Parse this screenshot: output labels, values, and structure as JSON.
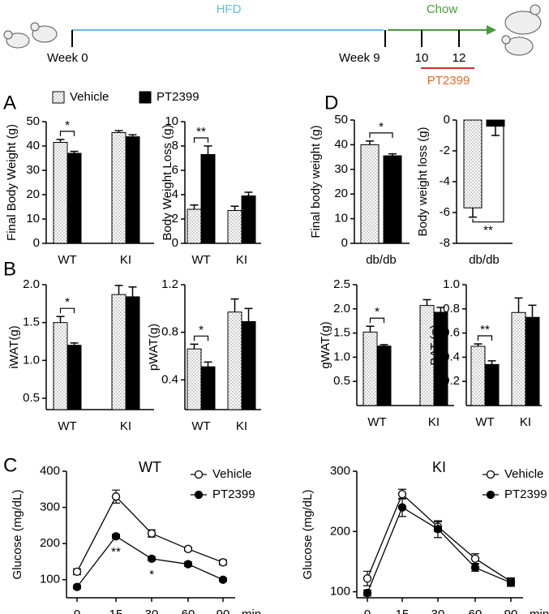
{
  "timeline": {
    "diet": [
      "HFD",
      "Chow"
    ],
    "weeks": [
      "Week 0",
      "Week 9",
      "10",
      "12"
    ],
    "treatment": "PT2399"
  },
  "panel_labels": [
    "A",
    "B",
    "C",
    "D"
  ],
  "chart_data": [
    {
      "type": "bar",
      "ylabel": "Final Body Weight (g)",
      "categories": [
        "WT",
        "KI"
      ],
      "legend": "top",
      "series": [
        {
          "name": "Vehicle",
          "color": "#ffffff",
          "pattern": "dots",
          "values": [
            41.5,
            45.5
          ],
          "errors": [
            1.2,
            0.8
          ]
        },
        {
          "name": "PT2399",
          "color": "#000000",
          "values": [
            37,
            43.8
          ],
          "errors": [
            0.8,
            0.8
          ]
        }
      ],
      "ylim": [
        0,
        50
      ],
      "yticks": [
        0,
        10,
        20,
        30,
        40,
        50
      ],
      "annotations": [
        "*"
      ]
    },
    {
      "type": "bar",
      "ylabel": "Body Weight Loss (g)",
      "categories": [
        "WT",
        "KI"
      ],
      "series": [
        {
          "color": "#ffffff",
          "pattern": "dots",
          "values": [
            2.8,
            2.7
          ],
          "errors": [
            0.35,
            0.35
          ]
        },
        {
          "color": "#000000",
          "values": [
            7.3,
            3.9
          ],
          "errors": [
            0.7,
            0.3
          ]
        }
      ],
      "ylim": [
        0,
        10
      ],
      "yticks": [
        0,
        2,
        4,
        6,
        8,
        10
      ],
      "annotations": [
        "**"
      ]
    },
    {
      "type": "bar",
      "ylabel": "Final body weight (g)",
      "categories": [
        "db/db"
      ],
      "series": [
        {
          "color": "#ffffff",
          "pattern": "dots",
          "values": [
            40
          ],
          "errors": [
            1.5
          ]
        },
        {
          "color": "#000000",
          "values": [
            35.5
          ],
          "errors": [
            0.8
          ]
        }
      ],
      "ylim": [
        0,
        50
      ],
      "yticks": [
        0,
        10,
        20,
        30,
        40,
        50
      ],
      "annotations": [
        "*"
      ]
    },
    {
      "type": "bar",
      "ylabel": "Body weight loss (g)",
      "categories": [
        "db/db"
      ],
      "series": [
        {
          "color": "#ffffff",
          "pattern": "dots",
          "values": [
            -5.7
          ],
          "errors": [
            0.6
          ]
        },
        {
          "color": "#000000",
          "values": [
            -0.4
          ],
          "errors": [
            0.6
          ]
        }
      ],
      "ylim": [
        -8,
        0
      ],
      "yticks": [
        -8,
        -6,
        -4,
        -2,
        0
      ],
      "annotations": [
        "**"
      ]
    },
    {
      "type": "bar",
      "ylabel": "iWAT(g)",
      "categories": [
        "WT",
        "KI"
      ],
      "series": [
        {
          "color": "#ffffff",
          "pattern": "dots",
          "values": [
            1.5,
            1.87
          ],
          "errors": [
            0.08,
            0.12
          ]
        },
        {
          "color": "#000000",
          "values": [
            1.2,
            1.84
          ],
          "errors": [
            0.03,
            0.13
          ]
        }
      ],
      "ylim": [
        0.35,
        2
      ],
      "yticks": [
        0.5,
        {
          "value": 1,
          "label": "1.0"
        },
        1.5,
        {
          "value": 2,
          "label": "2.0"
        }
      ],
      "annotations": [
        "*"
      ]
    },
    {
      "type": "bar",
      "ylabel": "pWAT(g)",
      "categories": [
        "WT",
        "KI"
      ],
      "series": [
        {
          "color": "#ffffff",
          "pattern": "dots",
          "values": [
            0.66,
            0.97
          ],
          "errors": [
            0.04,
            0.11
          ]
        },
        {
          "color": "#000000",
          "values": [
            0.51,
            0.89
          ],
          "errors": [
            0.04,
            0.11
          ]
        }
      ],
      "ylim": [
        0.15,
        1.2
      ],
      "yticks": [
        0.4,
        0.8,
        1.2
      ],
      "annotations": [
        "*"
      ]
    },
    {
      "type": "bar",
      "ylabel": "gWAT(g)",
      "categories": [
        "WT",
        "KI"
      ],
      "series": [
        {
          "color": "#ffffff",
          "pattern": "dots",
          "values": [
            1.52,
            2.07
          ],
          "errors": [
            0.12,
            0.12
          ]
        },
        {
          "color": "#000000",
          "values": [
            1.23,
            1.93
          ],
          "errors": [
            0.03,
            0.1
          ]
        }
      ],
      "ylim": [
        0,
        2.5
      ],
      "yticks": [
        0.5,
        {
          "value": 1,
          "label": "1.0"
        },
        1.5,
        {
          "value": 2,
          "label": "2.0"
        },
        2.5
      ],
      "annotations": [
        "*"
      ]
    },
    {
      "type": "bar",
      "ylabel": "BAT (g)",
      "categories": [
        "WT",
        "KI"
      ],
      "series": [
        {
          "color": "#ffffff",
          "pattern": "dots",
          "values": [
            0.49,
            0.77
          ],
          "errors": [
            0.02,
            0.12
          ]
        },
        {
          "color": "#000000",
          "values": [
            0.34,
            0.73
          ],
          "errors": [
            0.03,
            0.1
          ]
        }
      ],
      "ylim": [
        0,
        1
      ],
      "yticks": [
        0.2,
        0.4,
        0.6,
        0.8,
        {
          "value": 1,
          "label": "1.0"
        }
      ],
      "annotations": [
        "**"
      ]
    },
    {
      "type": "line",
      "title": "WT",
      "ylabel": "Glucose (mg/dL)",
      "categories": [
        "0",
        "15",
        "30",
        "60",
        "90"
      ],
      "xlabel": "min",
      "legend": "upper right",
      "series": [
        {
          "name": "Vehicle",
          "color": "#000000",
          "marker": "open",
          "values": [
            122,
            330,
            228,
            185,
            148
          ],
          "errors": [
            8,
            18,
            10,
            5,
            7
          ]
        },
        {
          "name": "PT2399",
          "color": "#000000",
          "marker": "filled",
          "values": [
            80,
            220,
            158,
            143,
            100
          ],
          "errors": [
            5,
            6,
            5,
            6,
            5
          ]
        }
      ],
      "ylim": [
        50,
        400
      ],
      "yticks": [
        100,
        200,
        300,
        400
      ],
      "annotations": [
        "**",
        "*"
      ]
    },
    {
      "type": "line",
      "title": "KI",
      "ylabel": "Glucose (mg/dL)",
      "categories": [
        "0",
        "15",
        "30",
        "60",
        "90"
      ],
      "xlabel": "min",
      "legend": "upper right",
      "series": [
        {
          "name": "Vehicle",
          "color": "#000000",
          "marker": "open",
          "values": [
            122,
            262,
            208,
            155,
            117
          ],
          "errors": [
            12,
            8,
            8,
            8,
            6
          ]
        },
        {
          "name": "PT2399",
          "color": "#000000",
          "marker": "filled",
          "values": [
            98,
            240,
            204,
            140,
            115
          ],
          "errors": [
            5,
            15,
            14,
            6,
            6
          ]
        }
      ],
      "ylim": [
        90,
        300
      ],
      "yticks": [
        100,
        200,
        300
      ]
    }
  ]
}
